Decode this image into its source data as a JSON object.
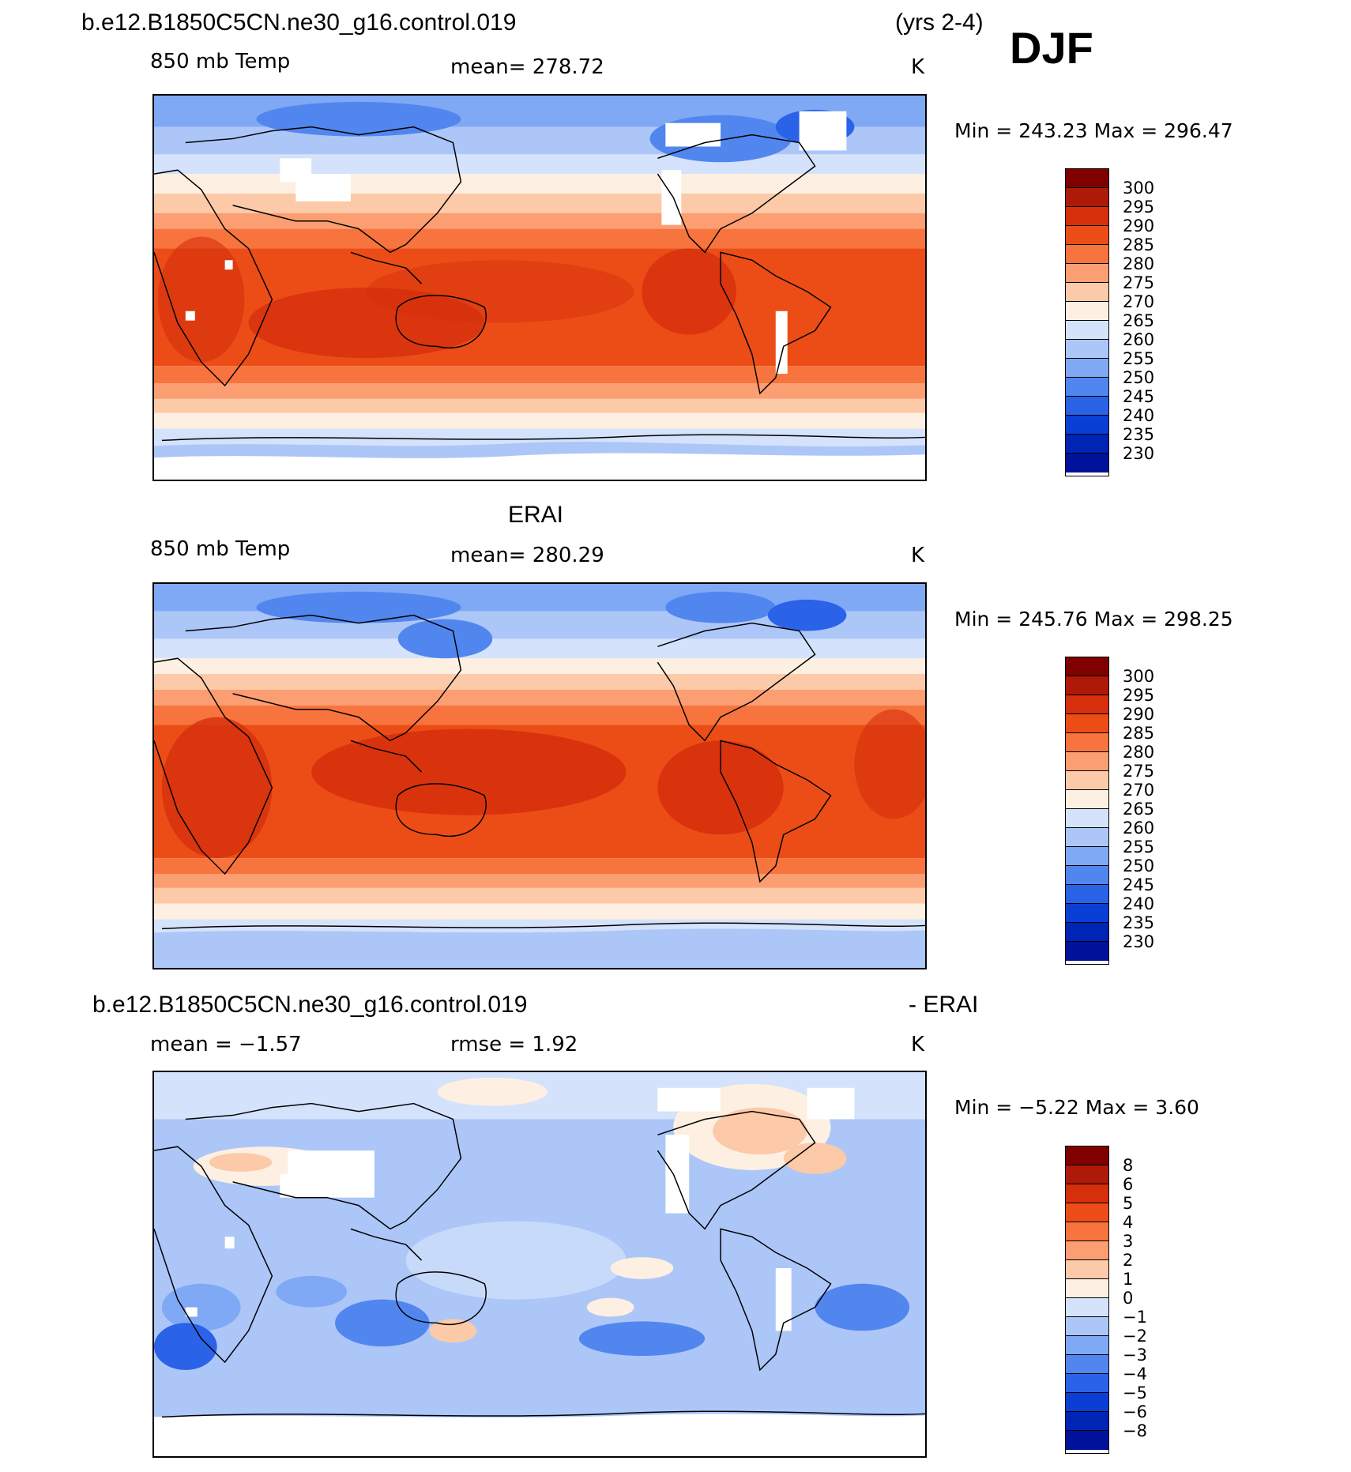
{
  "header": {
    "case_name": "b.e12.B1850C5CN.ne30_g16.control.019",
    "years": "(yrs 2-4)",
    "season": "DJF"
  },
  "panels": [
    {
      "id": "model",
      "field_label": "850 mb Temp",
      "stat_text": "mean=  278.72",
      "units": "K",
      "minmax": "Min  =  243.23  Max  =  296.47",
      "colorbar_ticks": [
        "300",
        "295",
        "290",
        "285",
        "280",
        "275",
        "270",
        "265",
        "260",
        "255",
        "250",
        "245",
        "240",
        "235",
        "230"
      ]
    },
    {
      "id": "obs",
      "title": "ERAI",
      "field_label": "850 mb Temp",
      "stat_text": "mean=  280.29",
      "units": "K",
      "minmax": "Min  =  245.76  Max  =  298.25",
      "colorbar_ticks": [
        "300",
        "295",
        "290",
        "285",
        "280",
        "275",
        "270",
        "265",
        "260",
        "255",
        "250",
        "245",
        "240",
        "235",
        "230"
      ]
    },
    {
      "id": "diff",
      "title_left": "b.e12.B1850C5CN.ne30_g16.control.019",
      "title_right": "- ERAI",
      "field_label": "mean  =    −1.57",
      "stat_text": "rmse  =     1.92",
      "units": "K",
      "minmax": "Min  =     −5.22  Max  =     3.60",
      "colorbar_ticks": [
        "8",
        "6",
        "5",
        "4",
        "3",
        "2",
        "1",
        "0",
        "−1",
        "−2",
        "−3",
        "−4",
        "−5",
        "−6",
        "−8"
      ]
    }
  ],
  "colorbar_colors": [
    "#000080",
    "#001299",
    "#0024b4",
    "#0a3fd6",
    "#2a62e8",
    "#5286ef",
    "#7fa8f5",
    "#acc6f8",
    "#d4e3fb",
    "#fdf0e2",
    "#fccaa8",
    "#fb9e72",
    "#f7743e",
    "#ec4d17",
    "#d62f0c",
    "#ae1a07",
    "#800000"
  ]
}
